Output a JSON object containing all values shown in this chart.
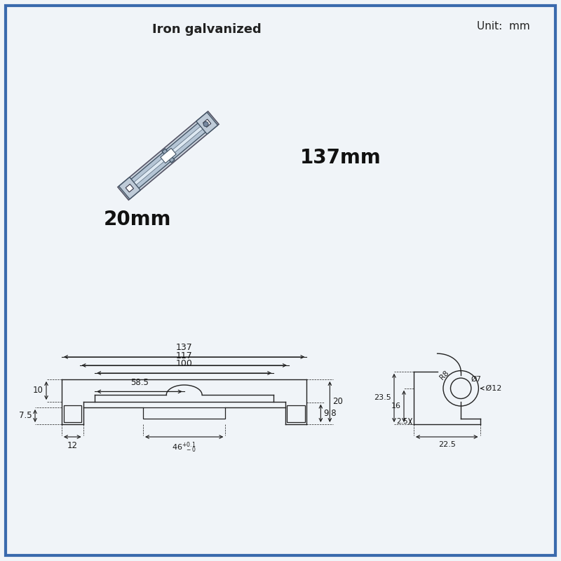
{
  "title_material": "Iron galvanized",
  "unit_text": "Unit:  mm",
  "dim_137mm": "137mm",
  "dim_20mm": "20mm",
  "background_color": "#f0f4f8",
  "border_color": "#3a6aad",
  "line_color": "#222222",
  "dim_color": "#1a1a1a"
}
